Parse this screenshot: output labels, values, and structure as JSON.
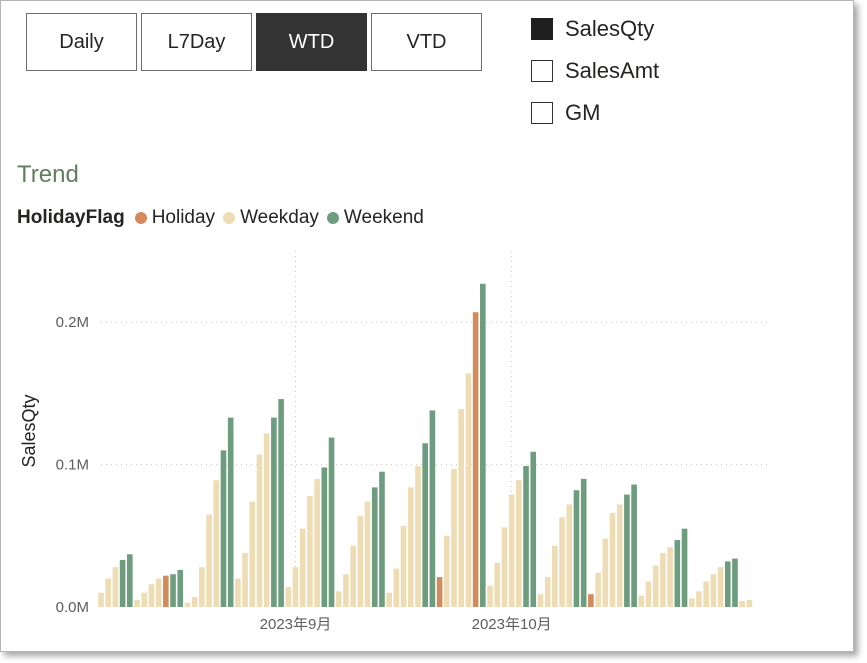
{
  "slicer": {
    "tabs": [
      {
        "label": "Daily",
        "active": false
      },
      {
        "label": "L7Day",
        "active": false
      },
      {
        "label": "WTD",
        "active": true
      },
      {
        "label": "VTD",
        "active": false
      }
    ]
  },
  "measures": [
    {
      "label": "SalesQty",
      "checked": true
    },
    {
      "label": "SalesAmt",
      "checked": false
    },
    {
      "label": "GM",
      "checked": false
    }
  ],
  "visual_title": "Trend",
  "legend": {
    "title": "HolidayFlag",
    "items": [
      {
        "label": "Holiday",
        "color": "#D38B5D"
      },
      {
        "label": "Weekday",
        "color": "#EEDDB4"
      },
      {
        "label": "Weekend",
        "color": "#6E9C7E"
      }
    ]
  },
  "chart_data": {
    "type": "bar",
    "title": "Trend",
    "ylabel": "SalesQty",
    "xlabel": "",
    "ylim": [
      0,
      250000
    ],
    "y_ticks": [
      {
        "value": 0,
        "label": "0.0M"
      },
      {
        "value": 100000,
        "label": "0.1M"
      },
      {
        "value": 200000,
        "label": "0.2M"
      }
    ],
    "x_ticks": [
      {
        "label": "2023年9月",
        "date": "2023-09-01"
      },
      {
        "label": "2023年10月",
        "date": "2023-10-01"
      }
    ],
    "x_range": [
      "2023-08-05",
      "2023-11-06"
    ],
    "grid": true,
    "legend_position": "top-left",
    "series_colors": {
      "Holiday": "#D38B5D",
      "Weekday": "#EEDDB4",
      "Weekend": "#6E9C7E"
    },
    "points": [
      {
        "date": "2023-08-05",
        "flag": "Weekday",
        "value": 10000
      },
      {
        "date": "2023-08-06",
        "flag": "Weekday",
        "value": 20000
      },
      {
        "date": "2023-08-07",
        "flag": "Weekday",
        "value": 28000
      },
      {
        "date": "2023-08-08",
        "flag": "Weekend",
        "value": 33000
      },
      {
        "date": "2023-08-09",
        "flag": "Weekend",
        "value": 37000
      },
      {
        "date": "2023-08-10",
        "flag": "Weekday",
        "value": 5000
      },
      {
        "date": "2023-08-11",
        "flag": "Weekday",
        "value": 10000
      },
      {
        "date": "2023-08-12",
        "flag": "Weekday",
        "value": 16000
      },
      {
        "date": "2023-08-13",
        "flag": "Weekday",
        "value": 20000
      },
      {
        "date": "2023-08-14",
        "flag": "Holiday",
        "value": 22000
      },
      {
        "date": "2023-08-15",
        "flag": "Weekend",
        "value": 23000
      },
      {
        "date": "2023-08-16",
        "flag": "Weekend",
        "value": 26000
      },
      {
        "date": "2023-08-17",
        "flag": "Weekday",
        "value": 3000
      },
      {
        "date": "2023-08-18",
        "flag": "Weekday",
        "value": 7000
      },
      {
        "date": "2023-08-19",
        "flag": "Weekday",
        "value": 28000
      },
      {
        "date": "2023-08-20",
        "flag": "Weekday",
        "value": 65000
      },
      {
        "date": "2023-08-21",
        "flag": "Weekday",
        "value": 89000
      },
      {
        "date": "2023-08-22",
        "flag": "Weekend",
        "value": 110000
      },
      {
        "date": "2023-08-23",
        "flag": "Weekend",
        "value": 133000
      },
      {
        "date": "2023-08-24",
        "flag": "Weekday",
        "value": 20000
      },
      {
        "date": "2023-08-25",
        "flag": "Weekday",
        "value": 38000
      },
      {
        "date": "2023-08-26",
        "flag": "Weekday",
        "value": 74000
      },
      {
        "date": "2023-08-27",
        "flag": "Weekday",
        "value": 107000
      },
      {
        "date": "2023-08-28",
        "flag": "Weekday",
        "value": 122000
      },
      {
        "date": "2023-08-29",
        "flag": "Weekend",
        "value": 133000
      },
      {
        "date": "2023-08-30",
        "flag": "Weekend",
        "value": 146000
      },
      {
        "date": "2023-08-31",
        "flag": "Weekday",
        "value": 14000
      },
      {
        "date": "2023-09-01",
        "flag": "Weekday",
        "value": 28000
      },
      {
        "date": "2023-09-02",
        "flag": "Weekday",
        "value": 55000
      },
      {
        "date": "2023-09-03",
        "flag": "Weekday",
        "value": 78000
      },
      {
        "date": "2023-09-04",
        "flag": "Weekday",
        "value": 90000
      },
      {
        "date": "2023-09-05",
        "flag": "Weekend",
        "value": 98000
      },
      {
        "date": "2023-09-06",
        "flag": "Weekend",
        "value": 119000
      },
      {
        "date": "2023-09-07",
        "flag": "Weekday",
        "value": 11000
      },
      {
        "date": "2023-09-08",
        "flag": "Weekday",
        "value": 23000
      },
      {
        "date": "2023-09-09",
        "flag": "Weekday",
        "value": 43000
      },
      {
        "date": "2023-09-10",
        "flag": "Weekday",
        "value": 64000
      },
      {
        "date": "2023-09-11",
        "flag": "Weekday",
        "value": 74000
      },
      {
        "date": "2023-09-12",
        "flag": "Weekend",
        "value": 84000
      },
      {
        "date": "2023-09-13",
        "flag": "Weekend",
        "value": 95000
      },
      {
        "date": "2023-09-14",
        "flag": "Weekday",
        "value": 10000
      },
      {
        "date": "2023-09-15",
        "flag": "Weekday",
        "value": 27000
      },
      {
        "date": "2023-09-16",
        "flag": "Weekday",
        "value": 57000
      },
      {
        "date": "2023-09-17",
        "flag": "Weekday",
        "value": 84000
      },
      {
        "date": "2023-09-18",
        "flag": "Weekday",
        "value": 99000
      },
      {
        "date": "2023-09-19",
        "flag": "Weekend",
        "value": 115000
      },
      {
        "date": "2023-09-20",
        "flag": "Weekend",
        "value": 138000
      },
      {
        "date": "2023-09-21",
        "flag": "Holiday",
        "value": 21000
      },
      {
        "date": "2023-09-22",
        "flag": "Weekday",
        "value": 50000
      },
      {
        "date": "2023-09-23",
        "flag": "Weekday",
        "value": 97000
      },
      {
        "date": "2023-09-24",
        "flag": "Weekday",
        "value": 139000
      },
      {
        "date": "2023-09-25",
        "flag": "Weekday",
        "value": 164000
      },
      {
        "date": "2023-09-26",
        "flag": "Holiday",
        "value": 207000
      },
      {
        "date": "2023-09-27",
        "flag": "Weekend",
        "value": 227000
      },
      {
        "date": "2023-09-28",
        "flag": "Weekday",
        "value": 15000
      },
      {
        "date": "2023-09-29",
        "flag": "Weekday",
        "value": 31000
      },
      {
        "date": "2023-09-30",
        "flag": "Weekday",
        "value": 56000
      },
      {
        "date": "2023-10-01",
        "flag": "Weekday",
        "value": 79000
      },
      {
        "date": "2023-10-02",
        "flag": "Weekday",
        "value": 89000
      },
      {
        "date": "2023-10-03",
        "flag": "Weekend",
        "value": 99000
      },
      {
        "date": "2023-10-04",
        "flag": "Weekend",
        "value": 109000
      },
      {
        "date": "2023-10-05",
        "flag": "Weekday",
        "value": 9000
      },
      {
        "date": "2023-10-06",
        "flag": "Weekday",
        "value": 21000
      },
      {
        "date": "2023-10-07",
        "flag": "Weekday",
        "value": 43000
      },
      {
        "date": "2023-10-08",
        "flag": "Weekday",
        "value": 63000
      },
      {
        "date": "2023-10-09",
        "flag": "Weekday",
        "value": 72000
      },
      {
        "date": "2023-10-10",
        "flag": "Weekend",
        "value": 82000
      },
      {
        "date": "2023-10-11",
        "flag": "Weekend",
        "value": 90000
      },
      {
        "date": "2023-10-12",
        "flag": "Holiday",
        "value": 9000
      },
      {
        "date": "2023-10-13",
        "flag": "Weekday",
        "value": 24000
      },
      {
        "date": "2023-10-14",
        "flag": "Weekday",
        "value": 48000
      },
      {
        "date": "2023-10-15",
        "flag": "Weekday",
        "value": 66000
      },
      {
        "date": "2023-10-16",
        "flag": "Weekday",
        "value": 72000
      },
      {
        "date": "2023-10-17",
        "flag": "Weekend",
        "value": 79000
      },
      {
        "date": "2023-10-18",
        "flag": "Weekend",
        "value": 86000
      },
      {
        "date": "2023-10-19",
        "flag": "Weekday",
        "value": 8000
      },
      {
        "date": "2023-10-20",
        "flag": "Weekday",
        "value": 18000
      },
      {
        "date": "2023-10-21",
        "flag": "Weekday",
        "value": 29000
      },
      {
        "date": "2023-10-22",
        "flag": "Weekday",
        "value": 38000
      },
      {
        "date": "2023-10-23",
        "flag": "Weekday",
        "value": 42000
      },
      {
        "date": "2023-10-24",
        "flag": "Weekend",
        "value": 47000
      },
      {
        "date": "2023-10-25",
        "flag": "Weekend",
        "value": 55000
      },
      {
        "date": "2023-10-26",
        "flag": "Weekday",
        "value": 6000
      },
      {
        "date": "2023-10-27",
        "flag": "Weekday",
        "value": 11000
      },
      {
        "date": "2023-10-28",
        "flag": "Weekday",
        "value": 18000
      },
      {
        "date": "2023-10-29",
        "flag": "Weekday",
        "value": 23000
      },
      {
        "date": "2023-10-30",
        "flag": "Weekday",
        "value": 28000
      },
      {
        "date": "2023-10-31",
        "flag": "Weekend",
        "value": 32000
      },
      {
        "date": "2023-11-01",
        "flag": "Weekend",
        "value": 34000
      },
      {
        "date": "2023-11-02",
        "flag": "Weekday",
        "value": 4000
      },
      {
        "date": "2023-11-03",
        "flag": "Weekday",
        "value": 5000
      }
    ]
  }
}
